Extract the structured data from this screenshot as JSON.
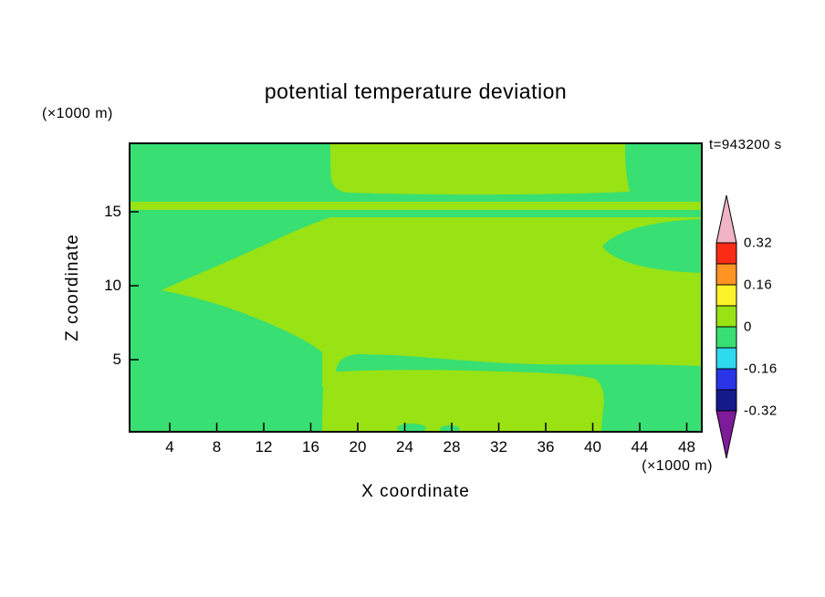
{
  "title": "potential temperature deviation",
  "timestamp_label": "t=943200 s",
  "axes": {
    "x_label": "X coordinate",
    "x_unit": "(×1000 m)",
    "y_label": "Z coordinate",
    "y_unit": "(×1000 m)",
    "x_ticks": [
      "4",
      "8",
      "12",
      "16",
      "20",
      "24",
      "28",
      "32",
      "36",
      "40",
      "44",
      "48"
    ],
    "y_ticks": [
      "15",
      "10",
      "5"
    ]
  },
  "colors": {
    "green": "#38df72",
    "yellowgreen": "#99e214",
    "axis": "#000000",
    "background": "#ffffff"
  },
  "colorbar": {
    "segments_top_to_bottom": [
      "#fb2c16",
      "#ff9422",
      "#fef32a",
      "#99e214",
      "#38df72",
      "#2fd9ee",
      "#2a35e8",
      "#141a8c"
    ],
    "overflow_top": "#f1b4c4",
    "overflow_bottom": "#7d1b9a",
    "labels": [
      "0.32",
      "0.16",
      "0",
      "-0.16",
      "-0.32"
    ]
  },
  "chart_data": {
    "type": "heatmap",
    "title": "potential temperature deviation",
    "xlabel": "X coordinate (×1000 m)",
    "ylabel": "Z coordinate (×1000 m)",
    "x_range": [
      0,
      50
    ],
    "z_range": [
      0,
      19.5
    ],
    "time_label": "t=943200 s",
    "contour_levels": [
      -0.32,
      -0.24,
      -0.16,
      -0.08,
      0,
      0.08,
      0.16,
      0.24,
      0.32
    ],
    "legend_position": "right vertical colorbar with overflow arrows",
    "grid": false,
    "visible_value_bands": [
      {
        "value_range": [
          0,
          0.08
        ],
        "color": "#99e214",
        "regions": [
          "upper band x≈17.5-42.5, z≈16.5-19.5",
          "thin full-width stripe at z≈15.2-15.7",
          "large central region z≈5.5-14.8 extending from x≈17.5 at top to x=50, bulging left to x≈3 near z≈10",
          "lower band x≈17-40.5, z≈0-4",
          "small pockets at bottom boundary near x≈24-28, z≈0"
        ]
      },
      {
        "value_range": [
          -0.08,
          0
        ],
        "color": "#38df72",
        "regions": [
          "upper-left block x≈0-17.5, z≈15.7-19.5",
          "upper-right block x≈42.5-50, z≈15.7-19.5",
          "right-edge tongue x≈41-50, z≈11-14.5",
          "left wedge pair above and below the central bulge, x≈0-17",
          "bottom-left x≈0-17 and bottom-right x≈41-50, z≈0-5.5",
          "thin gap between central and lower bands near z≈4.5"
        ]
      }
    ]
  }
}
